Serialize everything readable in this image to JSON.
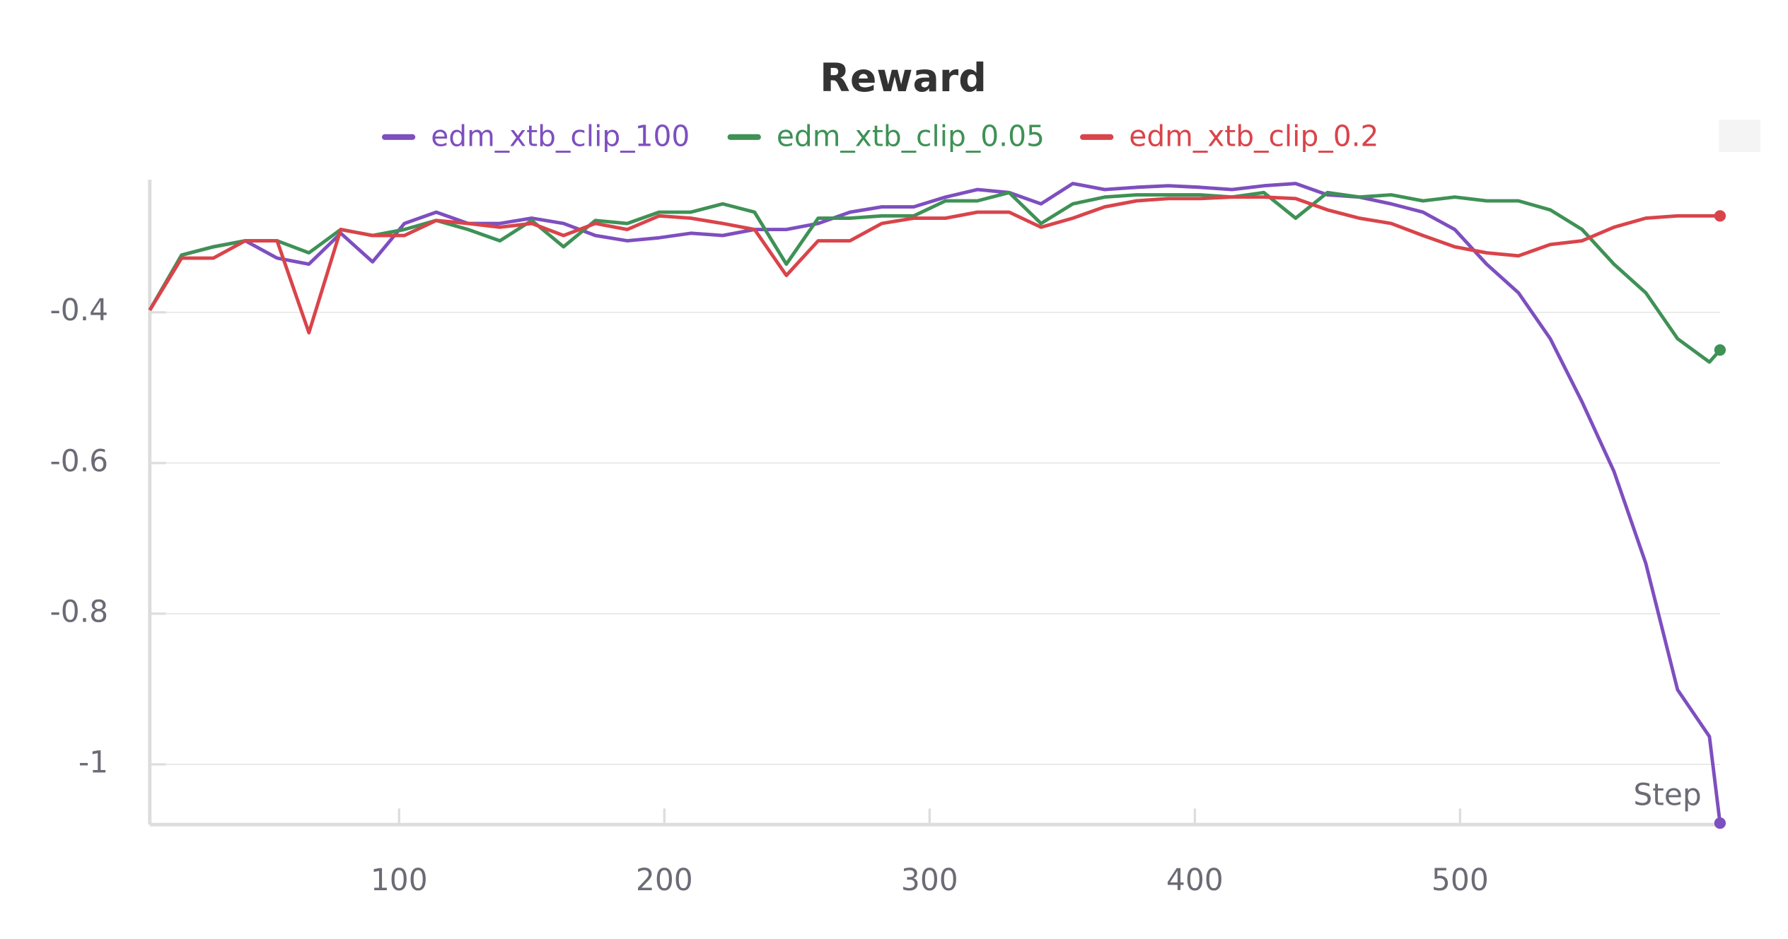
{
  "chart_data": {
    "type": "line",
    "title": "Reward",
    "x_label": "Step",
    "x": [
      6,
      18,
      30,
      42,
      54,
      66,
      78,
      90,
      102,
      114,
      126,
      138,
      150,
      162,
      174,
      186,
      198,
      210,
      222,
      234,
      246,
      258,
      270,
      282,
      294,
      306,
      318,
      330,
      342,
      354,
      366,
      378,
      390,
      402,
      414,
      426,
      438,
      450,
      462,
      474,
      486,
      498,
      510,
      522,
      534,
      546,
      558,
      570,
      582,
      594,
      598
    ],
    "series": [
      {
        "name": "edm_xtb_clip_100",
        "color": "#7e4fbf",
        "values": [
          -0.397,
          -0.324,
          -0.313,
          -0.305,
          -0.328,
          -0.336,
          -0.295,
          -0.333,
          -0.282,
          -0.267,
          -0.282,
          -0.282,
          -0.275,
          -0.282,
          -0.298,
          -0.305,
          -0.301,
          -0.295,
          -0.298,
          -0.29,
          -0.29,
          -0.282,
          -0.267,
          -0.26,
          -0.26,
          -0.247,
          -0.237,
          -0.241,
          -0.256,
          -0.229,
          -0.237,
          -0.234,
          -0.232,
          -0.234,
          -0.237,
          -0.232,
          -0.229,
          -0.244,
          -0.247,
          -0.256,
          -0.267,
          -0.29,
          -0.336,
          -0.374,
          -0.435,
          -0.519,
          -0.611,
          -0.733,
          -0.901,
          -0.963,
          -1.078
        ]
      },
      {
        "name": "edm_xtb_clip_0.05",
        "color": "#3f9156",
        "values": [
          -0.397,
          -0.324,
          -0.313,
          -0.305,
          -0.305,
          -0.321,
          -0.29,
          -0.298,
          -0.29,
          -0.278,
          -0.29,
          -0.305,
          -0.278,
          -0.313,
          -0.278,
          -0.282,
          -0.267,
          -0.267,
          -0.256,
          -0.267,
          -0.336,
          -0.275,
          -0.275,
          -0.272,
          -0.272,
          -0.252,
          -0.252,
          -0.241,
          -0.282,
          -0.256,
          -0.247,
          -0.244,
          -0.244,
          -0.244,
          -0.247,
          -0.241,
          -0.275,
          -0.241,
          -0.247,
          -0.244,
          -0.252,
          -0.247,
          -0.252,
          -0.252,
          -0.264,
          -0.29,
          -0.336,
          -0.374,
          -0.435,
          -0.466,
          -0.45
        ]
      },
      {
        "name": "edm_xtb_clip_0.2",
        "color": "#d9444a",
        "values": [
          -0.397,
          -0.328,
          -0.328,
          -0.305,
          -0.305,
          -0.427,
          -0.29,
          -0.298,
          -0.298,
          -0.278,
          -0.282,
          -0.287,
          -0.282,
          -0.298,
          -0.282,
          -0.29,
          -0.272,
          -0.275,
          -0.282,
          -0.29,
          -0.351,
          -0.305,
          -0.305,
          -0.282,
          -0.275,
          -0.275,
          -0.267,
          -0.267,
          -0.287,
          -0.275,
          -0.26,
          -0.252,
          -0.249,
          -0.249,
          -0.247,
          -0.247,
          -0.249,
          -0.264,
          -0.275,
          -0.282,
          -0.298,
          -0.313,
          -0.321,
          -0.325,
          -0.31,
          -0.305,
          -0.287,
          -0.275,
          -0.272,
          -0.272,
          -0.272
        ]
      }
    ],
    "xlim": [
      6,
      598
    ],
    "xticks": [
      100,
      200,
      300,
      400,
      500
    ],
    "ylim": [
      -1.08,
      -0.23
    ],
    "yticks": [
      -0.4,
      -0.6,
      -0.8,
      -1
    ],
    "grid": true
  }
}
